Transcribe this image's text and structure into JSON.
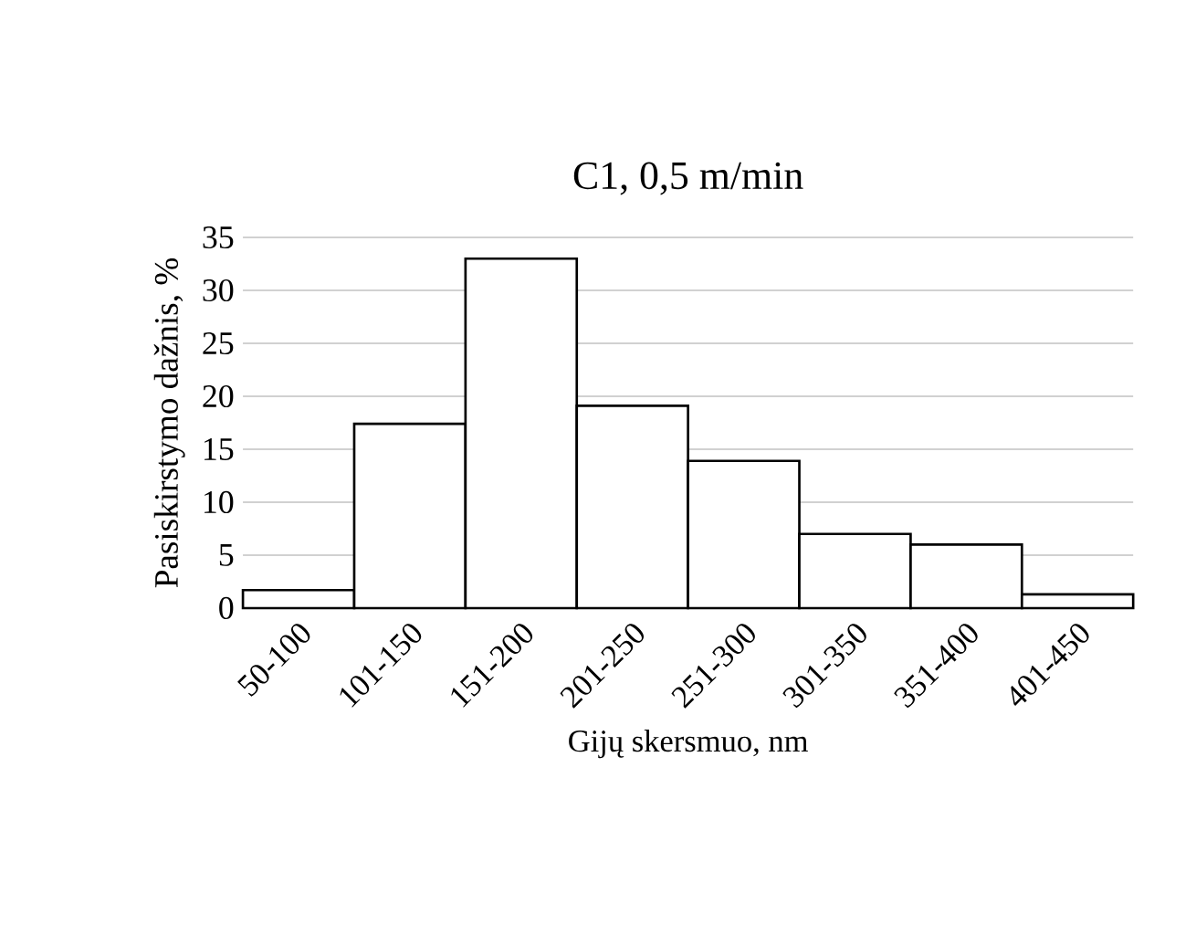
{
  "chart_data": {
    "type": "bar",
    "title": "C1, 0,5 m/min",
    "xlabel": "Gijų skersmuo, nm",
    "ylabel": "Pasiskirstymo dažnis, %",
    "categories": [
      "50-100",
      "101-150",
      "151-200",
      "201-250",
      "251-300",
      "301-350",
      "351-400",
      "401-450"
    ],
    "values": [
      1.7,
      17.4,
      33,
      19.1,
      13.9,
      7,
      6,
      1.3
    ],
    "color": "#ffffff",
    "ylim": [
      0,
      35
    ],
    "yticks": [
      0,
      5,
      10,
      15,
      20,
      25,
      30,
      35
    ],
    "grid": "y"
  }
}
